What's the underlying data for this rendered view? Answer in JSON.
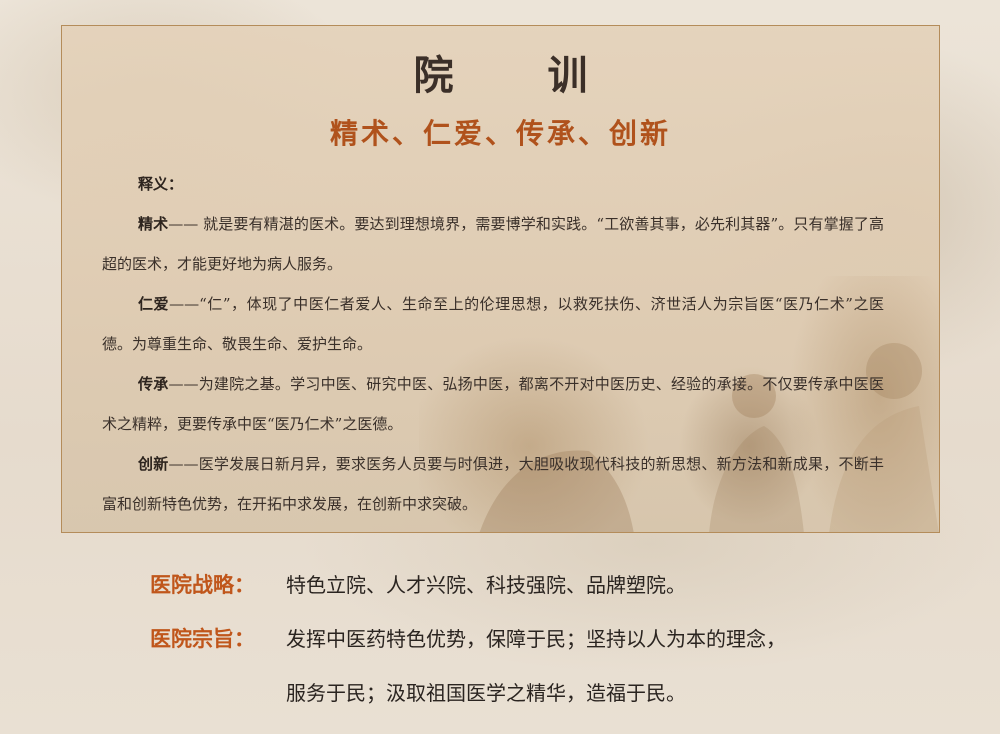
{
  "panel": {
    "title": "院 训",
    "motto": "精术、仁爱、传承、创新",
    "explain_label": "释义：",
    "items": [
      {
        "term": "精术",
        "text": "—— 就是要有精湛的医术。要达到理想境界，需要博学和实践。“工欲善其事，必先利其器”。只有掌握了高超的医术，才能更好地为病人服务。"
      },
      {
        "term": "仁爱",
        "text": "——“仁”，体现了中医仁者爱人、生命至上的伦理思想，以救死扶伤、济世活人为宗旨医“医乃仁术”之医德。为尊重生命、敬畏生命、爱护生命。"
      },
      {
        "term": "传承",
        "text": "——为建院之基。学习中医、研究中医、弘扬中医，都离不开对中医历史、经验的承接。不仅要传承中医医术之精粹，更要传承中医“医乃仁术”之医德。"
      },
      {
        "term": "创新",
        "text": "——医学发展日新月异，要求医务人员要与时俱进，大胆吸收现代科技的新思想、新方法和新成果，不断丰富和创新特色优势，在开拓中求发展，在创新中求突破。"
      }
    ]
  },
  "strategy": {
    "label": "医院战略：",
    "text": "特色立院、人才兴院、科技强院、品牌塑院。"
  },
  "purpose": {
    "label": "医院宗旨：",
    "line1": "发挥中医药特色优势，保障于民；坚持以人为本的理念，",
    "line2": "服务于民；汲取祖国医学之精华，造福于民。"
  },
  "colors": {
    "accent": "#c0561b",
    "panel_border": "#b48c5a",
    "text": "#3a302a"
  }
}
